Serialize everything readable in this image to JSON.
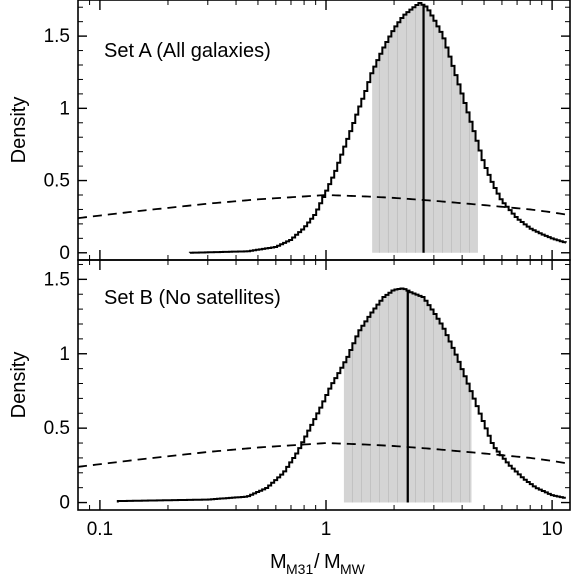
{
  "chart_data": [
    {
      "type": "area",
      "panel": "top",
      "label": "Set A (All galaxies)",
      "ylabel": "Density",
      "xlabel": "M_M31/M_MW",
      "xscale": "log",
      "xlim": [
        0.08,
        12
      ],
      "ylim": [
        -0.05,
        1.75
      ],
      "xticks": [
        0.1,
        1,
        10
      ],
      "yticks": [
        0,
        0.5,
        1,
        1.5
      ],
      "ytick_labels": [
        "0",
        "0.5",
        "1",
        "1.5"
      ],
      "histogram_peak": {
        "x": 2.6,
        "density": 1.73
      },
      "median": 2.7,
      "shaded_interval": [
        1.6,
        4.7
      ],
      "histogram": {
        "x": [
          0.25,
          0.45,
          0.6,
          0.7,
          0.8,
          0.9,
          1.0,
          1.1,
          1.2,
          1.3,
          1.4,
          1.5,
          1.6,
          1.8,
          2.0,
          2.2,
          2.4,
          2.6,
          2.8,
          3.0,
          3.3,
          3.6,
          4.0,
          4.5,
          5.0,
          5.5,
          6.0,
          7.0,
          8.0,
          9.0,
          10.0,
          11.5
        ],
        "density": [
          0.0,
          0.01,
          0.04,
          0.09,
          0.17,
          0.27,
          0.42,
          0.56,
          0.72,
          0.86,
          1.0,
          1.12,
          1.25,
          1.42,
          1.55,
          1.64,
          1.69,
          1.73,
          1.7,
          1.62,
          1.5,
          1.32,
          1.1,
          0.85,
          0.62,
          0.47,
          0.36,
          0.24,
          0.17,
          0.13,
          0.1,
          0.07
        ]
      },
      "prior": {
        "x": [
          0.08,
          0.15,
          0.3,
          0.5,
          0.8,
          1.0,
          1.5,
          2.0,
          3.0,
          5.0,
          8.0,
          10.0,
          12.0
        ],
        "density": [
          0.24,
          0.29,
          0.34,
          0.37,
          0.39,
          0.4,
          0.39,
          0.38,
          0.36,
          0.33,
          0.3,
          0.28,
          0.26
        ]
      }
    },
    {
      "type": "area",
      "panel": "bottom",
      "label": "Set B (No satellites)",
      "ylabel": "Density",
      "xlabel": "M_M31/M_MW",
      "xscale": "log",
      "xlim": [
        0.08,
        12
      ],
      "ylim": [
        -0.05,
        1.63
      ],
      "xticks": [
        0.1,
        1,
        10
      ],
      "xtick_labels": [
        "0.1",
        "1",
        "10"
      ],
      "yticks": [
        0,
        0.5,
        1,
        1.5
      ],
      "ytick_labels": [
        "0",
        "0.5",
        "1",
        "1.5"
      ],
      "histogram_peak": {
        "x": 2.2,
        "density": 1.44
      },
      "median": 2.3,
      "shaded_interval": [
        1.2,
        4.4
      ],
      "histogram": {
        "x": [
          0.12,
          0.3,
          0.45,
          0.55,
          0.65,
          0.75,
          0.85,
          0.95,
          1.05,
          1.15,
          1.25,
          1.4,
          1.6,
          1.8,
          2.0,
          2.2,
          2.4,
          2.7,
          3.0,
          3.3,
          3.7,
          4.2,
          4.8,
          5.5,
          6.5,
          7.5,
          8.5,
          10.0,
          11.5
        ],
        "density": [
          0.01,
          0.02,
          0.04,
          0.1,
          0.2,
          0.34,
          0.5,
          0.64,
          0.78,
          0.88,
          0.98,
          1.15,
          1.28,
          1.38,
          1.43,
          1.44,
          1.41,
          1.38,
          1.28,
          1.18,
          1.02,
          0.82,
          0.6,
          0.38,
          0.25,
          0.16,
          0.1,
          0.05,
          0.03
        ]
      },
      "prior": {
        "x": [
          0.08,
          0.15,
          0.3,
          0.5,
          0.8,
          1.0,
          1.5,
          2.0,
          3.0,
          5.0,
          8.0,
          10.0,
          12.0
        ],
        "density": [
          0.24,
          0.29,
          0.34,
          0.37,
          0.39,
          0.4,
          0.39,
          0.38,
          0.36,
          0.33,
          0.3,
          0.28,
          0.26
        ]
      }
    }
  ],
  "axis_text": {
    "ylabel_top": "Density",
    "ylabel_bottom": "Density",
    "xlabel_main": "M",
    "xlabel_sub1": "M31",
    "xlabel_sub2": "MW"
  },
  "colors": {
    "histogram": "#000000",
    "shaded": "#d4d4d4",
    "shade_lines": "#bdbdbd",
    "prior": "#000000",
    "frame": "#000000"
  }
}
